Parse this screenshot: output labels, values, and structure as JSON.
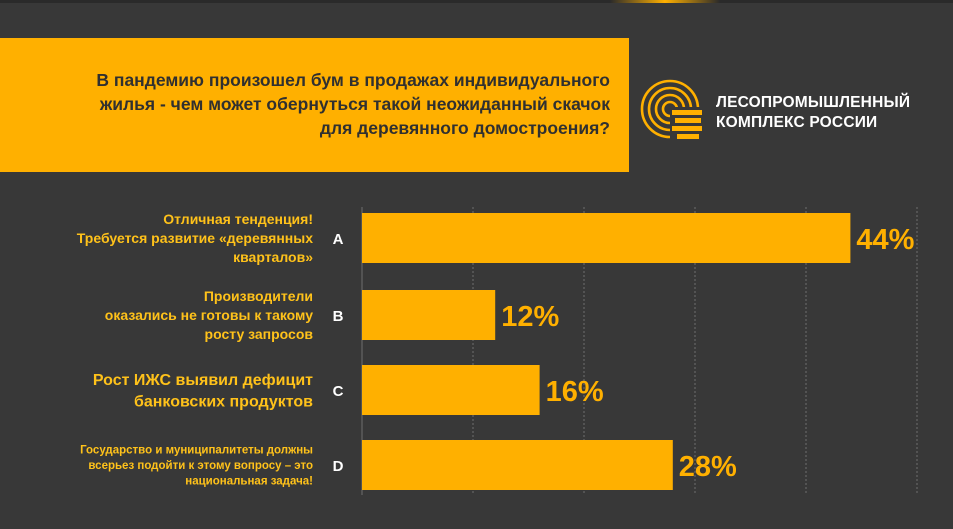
{
  "question": {
    "line1": "В пандемию произошел бум в продажах индивидуального",
    "line2": "жилья - чем может обернуться такой неожиданный скачок",
    "line3": "для деревянного домостроения?"
  },
  "brand": {
    "line1": "ЛЕСОПРОМЫШЛЕННЫЙ",
    "line2": "КОМПЛЕКС РОССИИ",
    "logo_icon": "tree-rings-logo-icon"
  },
  "colors": {
    "accent": "#ffb000",
    "background": "#383838",
    "text": "#ffffff",
    "label": "#ffc21a",
    "grid": "#6e6e6e"
  },
  "chart_data": {
    "type": "bar",
    "orientation": "horizontal",
    "xlim": [
      0,
      50
    ],
    "grid": true,
    "categories": [
      {
        "letter": "A",
        "lines": [
          "Отличная тенденция!",
          "Требуется развитие «деревянных",
          "кварталов»"
        ],
        "size": 14,
        "value": 44,
        "label": "44%"
      },
      {
        "letter": "B",
        "lines": [
          "Производители",
          "оказались не готовы к такому",
          "росту запросов"
        ],
        "size": 14,
        "value": 12,
        "label": "12%"
      },
      {
        "letter": "C",
        "lines": [
          "Рост ИЖС выявил дефицит",
          "банковских продуктов"
        ],
        "size": 16,
        "value": 16,
        "label": "16%"
      },
      {
        "letter": "D",
        "lines": [
          "Государство и муниципалитеты должны",
          "всерьез подойти к этому вопросу – это",
          "национальная задача!"
        ],
        "size": 11.5,
        "value": 28,
        "label": "28%"
      }
    ]
  }
}
